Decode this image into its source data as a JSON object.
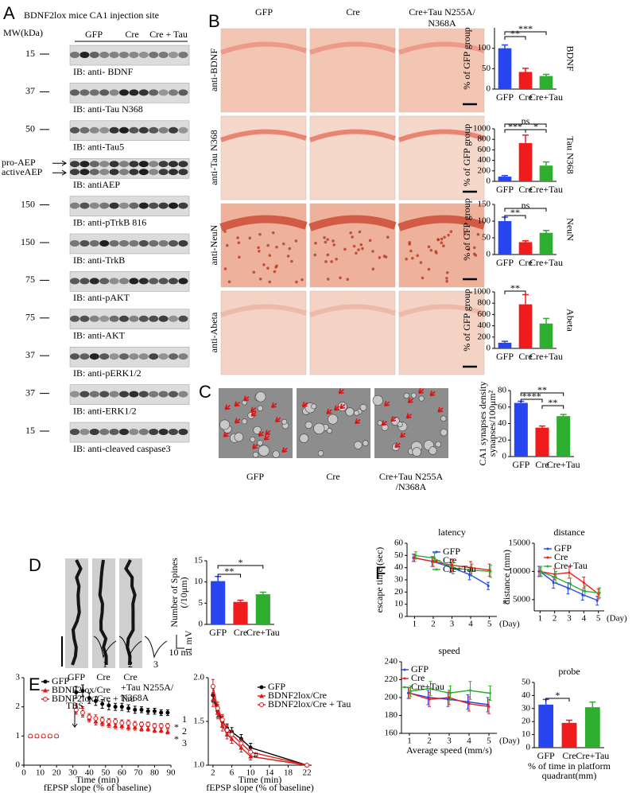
{
  "panels": {
    "letters": [
      "A",
      "B",
      "C",
      "D",
      "E",
      "F"
    ],
    "a": {
      "title": "BDNF2lox mice CA1 injection site",
      "mw_header": "MW(kDa)",
      "groups": [
        "GFP",
        "Cre",
        "Cre + Tau"
      ],
      "rows": [
        {
          "mw": 15,
          "label": "IB: anti- BDNF"
        },
        {
          "mw": 37,
          "label": "IB: anti-Tau N368"
        },
        {
          "mw": 50,
          "label": "IB: anti-Tau5"
        },
        {
          "markers": [
            "pro-AEP",
            "activeAEP"
          ],
          "label": "IB: antiAEP"
        },
        {
          "mw": 150,
          "label": "IB: anti-pTrkB 816"
        },
        {
          "mw": 150,
          "label": "IB: anti-TrkB"
        },
        {
          "mw": 75,
          "label": "IB: anti-pAKT"
        },
        {
          "mw": 75,
          "label": "IB: anti-AKT"
        },
        {
          "mw": 37,
          "label": "IB: anti-pERK1/2"
        },
        {
          "mw": 37,
          "label": "IB: anti-ERK1/2"
        },
        {
          "mw": 15,
          "label": "IB: anti-cleaved caspase3"
        }
      ]
    },
    "b": {
      "columns": [
        [
          "GFP"
        ],
        [
          "Cre"
        ],
        [
          "Cre+Tau N255A/",
          "N368A"
        ]
      ],
      "rows": [
        "anti-BDNF",
        "anti-Tau N368",
        "anti-NeuN",
        "anti-Abeta"
      ]
    },
    "c": {
      "captions": [
        [
          "GFP"
        ],
        [
          "Cre"
        ],
        [
          "Cre+Tau N255A",
          "/N368A"
        ]
      ]
    },
    "d": {
      "captions": [
        [
          "GFP"
        ],
        [
          "Cre"
        ],
        [
          "Cre",
          "+Tau N255A/",
          "N368A"
        ]
      ]
    },
    "e": {
      "trace_labels": [
        "1",
        "2",
        "3"
      ],
      "scale_labels": [
        "1 mV",
        "10 ms"
      ]
    }
  },
  "chart_data": [
    {
      "type": "bar",
      "categories": [
        "GFP",
        "Cre",
        "Cre+Tau"
      ],
      "values": [
        100,
        42,
        32
      ],
      "errors": [
        8,
        9,
        4
      ],
      "colors": [
        "#2846f0",
        "#f01c1c",
        "#2eae2e"
      ],
      "ylim": [
        0,
        150
      ],
      "yticks": [
        0,
        50,
        100
      ],
      "y_label": [
        "% of GFP group"
      ],
      "side_label": "BDNF",
      "annotations": [
        "**",
        "***"
      ]
    },
    {
      "type": "bar",
      "categories": [
        "GFP",
        "Cre",
        "Cre+Tau"
      ],
      "values": [
        90,
        730,
        300
      ],
      "errors": [
        20,
        150,
        70
      ],
      "colors": [
        "#2846f0",
        "#f01c1c",
        "#2eae2e"
      ],
      "ylim": [
        0,
        1000
      ],
      "yticks": [
        0,
        200,
        400,
        600,
        800,
        1000
      ],
      "y_label": [
        "% of GFP group"
      ],
      "side_label": "Tau N368",
      "annotations": [
        "ns",
        "***",
        "*"
      ]
    },
    {
      "type": "bar",
      "categories": [
        "GFP",
        "Cre",
        "Cre+Tau"
      ],
      "values": [
        100,
        37,
        65
      ],
      "errors": [
        12,
        4,
        7
      ],
      "colors": [
        "#2846f0",
        "#f01c1c",
        "#2eae2e"
      ],
      "ylim": [
        0,
        150
      ],
      "yticks": [
        0,
        50,
        100,
        150
      ],
      "y_label": [
        "% of GFP group"
      ],
      "side_label": "NeuN",
      "annotations": [
        "ns",
        "**"
      ]
    },
    {
      "type": "bar",
      "categories": [
        "GFP",
        "Cre",
        "Cre+Tau"
      ],
      "values": [
        100,
        780,
        440
      ],
      "errors": [
        25,
        170,
        90
      ],
      "colors": [
        "#2846f0",
        "#f01c1c",
        "#2eae2e"
      ],
      "ylim": [
        0,
        1000
      ],
      "yticks": [
        0,
        200,
        400,
        600,
        800,
        1000
      ],
      "y_label": [
        "% of GFP group"
      ],
      "side_label": "Abeta",
      "annotations": [
        "**"
      ]
    },
    {
      "type": "bar",
      "categories": [
        "GFP",
        "Cre",
        "Cre+Tau"
      ],
      "values": [
        65,
        35,
        49
      ],
      "errors": [
        2,
        2,
        2
      ],
      "colors": [
        "#2846f0",
        "#f01c1c",
        "#2eae2e"
      ],
      "ylim": [
        0,
        80
      ],
      "yticks": [
        0,
        20,
        40,
        60,
        80
      ],
      "y_label": [
        "CA1 synapses density",
        "synapses/100μm²"
      ],
      "annotations": [
        "****",
        "**",
        "**"
      ]
    },
    {
      "type": "bar",
      "categories": [
        "GFP",
        "Cre",
        "Cre+Tau"
      ],
      "values": [
        10.2,
        5.3,
        7.1
      ],
      "errors": [
        1.1,
        0.4,
        0.5
      ],
      "colors": [
        "#2846f0",
        "#f01c1c",
        "#2eae2e"
      ],
      "ylim": [
        0,
        15
      ],
      "yticks": [
        0,
        5,
        10,
        15
      ],
      "y_label": [
        "Number of Spines",
        "(/10μm)"
      ],
      "annotations": [
        "**",
        "*"
      ]
    },
    {
      "type": "scatter",
      "x": [
        4,
        8,
        12,
        16,
        20,
        32,
        36,
        40,
        44,
        48,
        52,
        56,
        60,
        64,
        68,
        72,
        76,
        80,
        84,
        88
      ],
      "xlim": [
        0,
        90
      ],
      "xticks": [
        0,
        10,
        20,
        30,
        40,
        50,
        60,
        70,
        80,
        90
      ],
      "ylim": [
        0,
        3
      ],
      "yticks": [
        0,
        1,
        2,
        3
      ],
      "x_label": "Time (min)",
      "caption": [
        "fEPSP slope (% of baseline)"
      ],
      "series": [
        {
          "name": "GFP",
          "color": "#000000",
          "marker": "circle",
          "values": [
            1,
            1,
            1,
            1,
            1,
            2.5,
            2.55,
            2.3,
            2.2,
            2.1,
            2.05,
            2,
            2,
            1.95,
            1.9,
            1.9,
            1.85,
            1.85,
            1.8,
            1.8
          ],
          "errors": [
            0.03,
            0.03,
            0.03,
            0.03,
            0.03,
            0.2,
            0.2,
            0.18,
            0.15,
            0.15,
            0.15,
            0.12,
            0.12,
            0.12,
            0.12,
            0.1,
            0.1,
            0.1,
            0.1,
            0.1
          ]
        },
        {
          "name": "BDNF2lox/Cre",
          "color": "#e01818",
          "marker": "triangle",
          "values": [
            1,
            1,
            1,
            1,
            1,
            1.95,
            1.85,
            1.6,
            1.5,
            1.45,
            1.4,
            1.35,
            1.35,
            1.3,
            1.3,
            1.25,
            1.25,
            1.2,
            1.2,
            1.15
          ],
          "errors": [
            0.03,
            0.03,
            0.03,
            0.03,
            0.03,
            0.15,
            0.15,
            0.12,
            0.12,
            0.1,
            0.1,
            0.1,
            0.1,
            0.1,
            0.1,
            0.08,
            0.08,
            0.08,
            0.08,
            0.08
          ]
        },
        {
          "name": "BDNF2lox/Cre + Tau",
          "color": "#e01818",
          "marker": "open-circle",
          "values": [
            1,
            1,
            1,
            1,
            1,
            1.9,
            1.8,
            1.65,
            1.6,
            1.55,
            1.5,
            1.5,
            1.45,
            1.45,
            1.4,
            1.4,
            1.4,
            1.35,
            1.35,
            1.35
          ],
          "errors": [
            0.03,
            0.03,
            0.03,
            0.03,
            0.03,
            0.15,
            0.15,
            0.12,
            0.12,
            0.1,
            0.1,
            0.1,
            0.1,
            0.1,
            0.1,
            0.08,
            0.08,
            0.08,
            0.08,
            0.08
          ]
        }
      ],
      "annotations": [
        "TBS",
        "1",
        "2",
        "3",
        "*",
        "*"
      ]
    },
    {
      "type": "line",
      "x": [
        2,
        3,
        4,
        5,
        6,
        8,
        10,
        22
      ],
      "xlim": [
        1,
        23
      ],
      "xticks": [
        2,
        6,
        10,
        14,
        18,
        22
      ],
      "ylim": [
        1,
        2
      ],
      "yticks": [
        {
          "value": 1,
          "label": "1.0"
        },
        {
          "value": 1.5,
          "label": "1.5"
        },
        {
          "value": 2,
          "label": "2.0"
        }
      ],
      "x_label": "Time (min)",
      "caption": [
        "fEPSP slope (% of baseline)"
      ],
      "series": [
        {
          "name": "GFP",
          "color": "#000000",
          "marker": "circle",
          "values": [
            1.8,
            1.62,
            1.5,
            1.42,
            1.38,
            1.3,
            1.2,
            1
          ],
          "errors": [
            0.08,
            0.07,
            0.06,
            0.05,
            0.05,
            0.05,
            0.05,
            0.01
          ]
        },
        {
          "name": "BDNF2lox/Cre",
          "color": "#e01818",
          "marker": "triangle",
          "values": [
            1.75,
            1.6,
            1.45,
            1.35,
            1.3,
            1.2,
            1.1,
            1
          ],
          "errors": [
            0.08,
            0.07,
            0.06,
            0.05,
            0.05,
            0.05,
            0.04,
            0.01
          ]
        },
        {
          "name": "BDNF2lox/Cre + Tau",
          "color": "#e01818",
          "marker": "open-circle",
          "values": [
            1.9,
            1.65,
            1.52,
            1.4,
            1.35,
            1.25,
            1.15,
            1
          ],
          "errors": [
            0.08,
            0.07,
            0.06,
            0.05,
            0.05,
            0.05,
            0.04,
            0.01
          ]
        }
      ],
      "annotations": [
        "#"
      ]
    },
    {
      "type": "line",
      "title": "latency",
      "x": [
        1,
        2,
        3,
        4,
        5
      ],
      "xlim": [
        0.6,
        5.4
      ],
      "xticks": [
        1,
        2,
        3,
        4,
        5
      ],
      "x_label": "(Day)",
      "ylim": [
        0,
        60
      ],
      "yticks": [
        0,
        10,
        20,
        30,
        40,
        50,
        60
      ],
      "y_label": [
        "escape time (sec)"
      ],
      "series": [
        {
          "name": "GFP",
          "color": "#2846f0",
          "values": [
            48,
            45,
            40,
            34,
            25
          ],
          "errors": [
            3,
            4,
            4,
            4,
            3
          ]
        },
        {
          "name": "Cre",
          "color": "#f01c1c",
          "values": [
            48,
            45,
            42,
            40,
            38
          ],
          "errors": [
            3,
            4,
            5,
            5,
            5
          ]
        },
        {
          "name": "Cre+Tau",
          "color": "#2eae2e",
          "values": [
            50,
            48,
            40,
            38,
            37
          ],
          "errors": [
            3,
            4,
            5,
            5,
            5
          ]
        }
      ],
      "annotations": [
        "*"
      ]
    },
    {
      "type": "line",
      "title": "distance",
      "x": [
        1,
        2,
        3,
        4,
        5
      ],
      "xlim": [
        0.6,
        5.4
      ],
      "xticks": [
        1,
        2,
        3,
        4,
        5
      ],
      "x_label": "(Day)",
      "ylim": [
        3000,
        15000
      ],
      "yticks": [
        5000,
        10000,
        15000
      ],
      "y_label": [
        "distance (mm)"
      ],
      "series": [
        {
          "name": "GFP",
          "color": "#2846f0",
          "values": [
            10000,
            8000,
            7000,
            5800,
            4800
          ],
          "errors": [
            900,
            1000,
            1000,
            900,
            800
          ]
        },
        {
          "name": "Cre",
          "color": "#f01c1c",
          "values": [
            10000,
            9500,
            9800,
            8000,
            6000
          ],
          "errors": [
            900,
            1000,
            1000,
            1000,
            900
          ]
        },
        {
          "name": "Cre+Tau",
          "color": "#2eae2e",
          "values": [
            10000,
            9000,
            7800,
            6500,
            6200
          ],
          "errors": [
            900,
            1000,
            1000,
            900,
            900
          ]
        }
      ]
    },
    {
      "type": "line",
      "title": "speed",
      "x": [
        1,
        2,
        3,
        4,
        5
      ],
      "xlim": [
        0.6,
        5.4
      ],
      "xticks": [
        1,
        2,
        3,
        4,
        5
      ],
      "x_label": "(Day)",
      "ylim": [
        160,
        240
      ],
      "yticks": [
        160,
        180,
        200,
        220,
        240
      ],
      "caption": [
        "Average speed (mm/s)"
      ],
      "series": [
        {
          "name": "GFP",
          "color": "#2846f0",
          "values": [
            205,
            200,
            198,
            195,
            192
          ],
          "errors": [
            6,
            8,
            8,
            8,
            8
          ]
        },
        {
          "name": "Cre",
          "color": "#f01c1c",
          "values": [
            205,
            198,
            200,
            193,
            190
          ],
          "errors": [
            6,
            8,
            8,
            8,
            8
          ]
        },
        {
          "name": "Cre+Tau",
          "color": "#2eae2e",
          "values": [
            207,
            210,
            205,
            208,
            205
          ],
          "errors": [
            6,
            8,
            8,
            10,
            8
          ]
        }
      ]
    },
    {
      "type": "bar",
      "title": "probe",
      "categories": [
        "GFP",
        "Cre",
        "Cre+Tau"
      ],
      "values": [
        33,
        19,
        31
      ],
      "errors": [
        4,
        2,
        4
      ],
      "colors": [
        "#2846f0",
        "#f01c1c",
        "#2eae2e"
      ],
      "ylim": [
        0,
        50
      ],
      "yticks": [
        0,
        10,
        20,
        30,
        40,
        50
      ],
      "caption": [
        "% of time in platform",
        "quadrant(mm)"
      ],
      "annotations": [
        "*"
      ]
    }
  ]
}
